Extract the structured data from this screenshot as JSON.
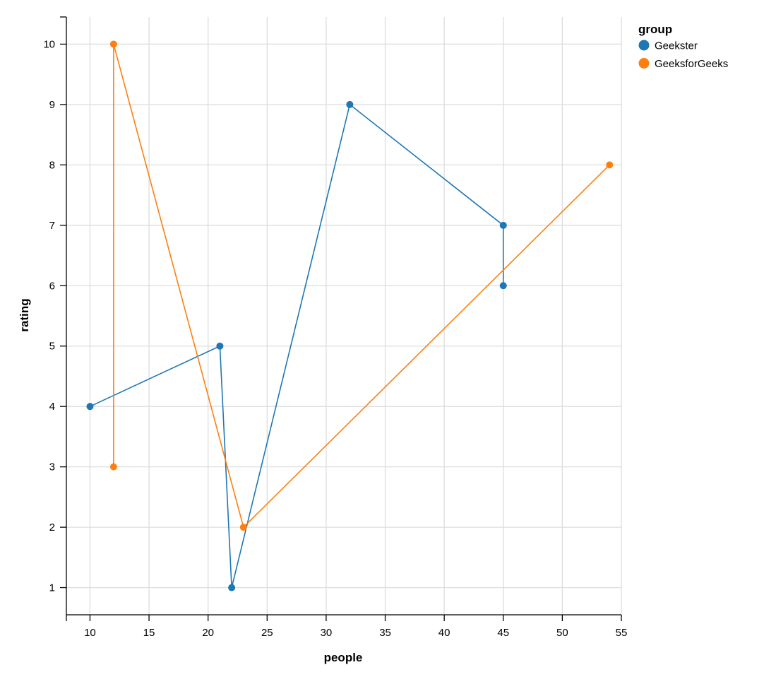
{
  "chart_data": {
    "type": "line",
    "xlabel": "people",
    "ylabel": "rating",
    "xlim": [
      8,
      55
    ],
    "ylim": [
      0.55,
      10.45
    ],
    "x_ticks": [
      10,
      15,
      20,
      25,
      30,
      35,
      40,
      45,
      50,
      55
    ],
    "y_ticks": [
      1,
      2,
      3,
      4,
      5,
      6,
      7,
      8,
      9,
      10
    ],
    "grid": true,
    "legend": {
      "title": "group",
      "placement": "top-right"
    },
    "series": [
      {
        "name": "Geekster",
        "color": "#1f77b4",
        "points": [
          {
            "x": 10,
            "y": 4
          },
          {
            "x": 21,
            "y": 5
          },
          {
            "x": 22,
            "y": 1
          },
          {
            "x": 32,
            "y": 9
          },
          {
            "x": 45,
            "y": 7
          },
          {
            "x": 45,
            "y": 6
          }
        ]
      },
      {
        "name": "GeeksforGeeks",
        "color": "#ff7f0e",
        "points": [
          {
            "x": 12,
            "y": 3
          },
          {
            "x": 12,
            "y": 10
          },
          {
            "x": 23,
            "y": 2
          },
          {
            "x": 54,
            "y": 8
          }
        ]
      }
    ]
  }
}
